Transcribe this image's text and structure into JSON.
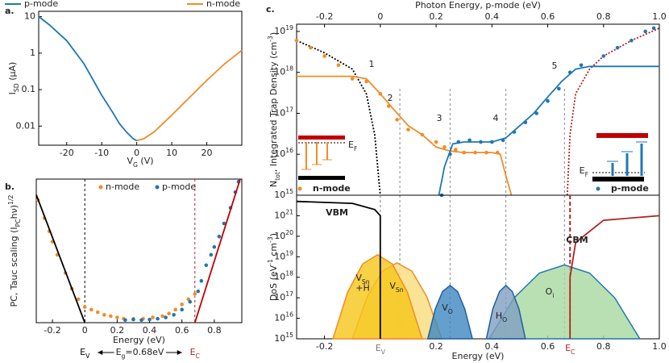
{
  "chart_data": [
    {
      "type": "line",
      "panel_label": "a.",
      "yscale": "log",
      "legend": "top",
      "xaxis": "bottom",
      "xlabel": [
        {
          "text": "V"
        },
        {
          "text": "G",
          "pos": "sub"
        },
        {
          "text": " (V)"
        }
      ],
      "ylabel": [
        {
          "text": "I"
        },
        {
          "text": "SD",
          "pos": "sub"
        },
        {
          "text": " (μA)"
        }
      ],
      "xlim": [
        -28,
        30
      ],
      "xticks": [
        -20,
        -10,
        0,
        10,
        20
      ],
      "ylim": [
        0.003,
        14
      ],
      "yticks": [
        0.01,
        0.1,
        1,
        10
      ],
      "series": [
        {
          "name": "p-mode",
          "color": "#1f77b4",
          "style": "line",
          "x": [
            -28,
            -25,
            -20,
            -15,
            -10,
            -7,
            -5,
            -3,
            -1,
            0
          ],
          "values": [
            10,
            6,
            2.2,
            0.5,
            0.07,
            0.025,
            0.012,
            0.007,
            0.0045,
            0.004
          ]
        },
        {
          "name": "n-mode",
          "color": "#f28c28",
          "style": "line",
          "x": [
            0,
            2,
            5,
            10,
            15,
            20,
            25,
            30
          ],
          "values": [
            0.004,
            0.0045,
            0.007,
            0.02,
            0.06,
            0.18,
            0.5,
            1.2
          ]
        }
      ]
    },
    {
      "type": "scatter",
      "panel_label": "b.",
      "legend": "top",
      "xaxis": "bottom",
      "xlabel": "Energy (eV)",
      "ylabel": [
        {
          "text": "PC, Tauc scaling  (I"
        },
        {
          "text": "PC",
          "pos": "sub"
        },
        {
          "text": "hν)"
        },
        {
          "text": "1/2",
          "pos": "sup"
        }
      ],
      "xlim": [
        -0.3,
        0.97
      ],
      "xticks": [
        -0.2,
        0,
        0.2,
        0.4,
        0.6,
        0.8
      ],
      "ylim": [
        0,
        5.5
      ],
      "vlines": [
        {
          "value": 0,
          "color": "#000000",
          "label": [
            {
              "text": "E"
            },
            {
              "text": "V",
              "pos": "sub"
            }
          ]
        },
        {
          "value": 0.68,
          "color": "#b22222",
          "label": [
            {
              "text": "E"
            },
            {
              "text": "C",
              "pos": "sub"
            }
          ]
        }
      ],
      "gap_label": [
        {
          "text": "E"
        },
        {
          "text": "g",
          "pos": "sub"
        },
        {
          "text": "=0.68eV"
        }
      ],
      "series": [
        {
          "name": "n-mode",
          "color": "#f28c28",
          "style": "dots",
          "x": [
            -0.29,
            -0.25,
            -0.22,
            -0.2,
            -0.17,
            -0.12,
            -0.08,
            -0.04,
            0,
            0.04,
            0.08,
            0.12,
            0.16,
            0.2,
            0.24,
            0.3,
            0.36,
            0.42,
            0.48,
            0.52,
            0.56,
            0.6,
            0.64,
            0.68
          ],
          "values": [
            4.7,
            4.0,
            3.5,
            3.1,
            2.6,
            1.9,
            1.3,
            0.9,
            0.6,
            0.5,
            0.4,
            0.3,
            0.25,
            0.2,
            0.15,
            0.15,
            0.15,
            0.2,
            0.25,
            0.35,
            0.5,
            0.7,
            0.9,
            1.1
          ]
        },
        {
          "name": "p-mode",
          "color": "#1f77b4",
          "style": "dots",
          "x": [
            0.25,
            0.3,
            0.35,
            0.4,
            0.45,
            0.5,
            0.55,
            0.6,
            0.65,
            0.7,
            0.72,
            0.75,
            0.78,
            0.8,
            0.83,
            0.86,
            0.9,
            0.93,
            0.95
          ],
          "values": [
            0.1,
            0.12,
            0.1,
            0.12,
            0.15,
            0.2,
            0.3,
            0.5,
            0.8,
            1.2,
            1.6,
            2.2,
            2.6,
            2.9,
            3.3,
            3.8,
            4.4,
            5.0,
            5.4
          ]
        },
        {
          "color": "#000000",
          "style": "line",
          "x": [
            -0.3,
            0
          ],
          "values": [
            4.9,
            0
          ]
        },
        {
          "color": "#c00000",
          "style": "line",
          "x": [
            0.68,
            0.96
          ],
          "values": [
            0,
            5.5
          ]
        }
      ]
    },
    {
      "type": "line",
      "panel_label": "c.",
      "yscale": "log",
      "xaxis": "top",
      "xlabel": "Photon Energy, p-mode  (eV)",
      "ylabel": [
        {
          "text": "N"
        },
        {
          "text": "tot",
          "pos": "sub"
        },
        {
          "text": ", Integrated Trap Density (cm"
        },
        {
          "text": "-3",
          "pos": "sup"
        },
        {
          "text": ")"
        }
      ],
      "xlim": [
        -0.3,
        1.0
      ],
      "xticks": [
        -0.2,
        0,
        0.2,
        0.4,
        0.6,
        0.8,
        {
          "value": 1,
          "label": "1.0"
        }
      ],
      "ylim": [
        1000000000000000.0,
        1.5e+19
      ],
      "yticks": [
        {
          "value": 1000000000000000.0,
          "label": [
            {
              "text": "10"
            },
            {
              "text": "15",
              "pos": "sup"
            }
          ]
        },
        {
          "value": 1e+16,
          "label": [
            {
              "text": "10"
            },
            {
              "text": "16",
              "pos": "sup"
            }
          ]
        },
        {
          "value": 1e+17,
          "label": [
            {
              "text": "10"
            },
            {
              "text": "17",
              "pos": "sup"
            }
          ]
        },
        {
          "value": 1e+18,
          "label": [
            {
              "text": "10"
            },
            {
              "text": "18",
              "pos": "sup"
            }
          ]
        },
        {
          "value": 1e+19,
          "label": [
            {
              "text": "10"
            },
            {
              "text": "19",
              "pos": "sup"
            }
          ]
        }
      ],
      "vlines": [
        0.07,
        0.25,
        0.45,
        0.66
      ],
      "annotations": [
        {
          "text": "1",
          "color": "#7a9a2a"
        },
        {
          "text": "2",
          "color": "#7a9a2a"
        },
        {
          "text": "3",
          "color": "#000000"
        },
        {
          "text": "4",
          "color": "#000000"
        },
        {
          "text": "5",
          "color": "#4f7a1f"
        }
      ],
      "insets": [
        {
          "ef": [
            {
              "text": "E"
            },
            {
              "text": "F",
              "pos": "sub"
            }
          ]
        },
        {
          "ef": [
            {
              "text": "E"
            },
            {
              "text": "F",
              "pos": "sub"
            }
          ]
        }
      ],
      "series": [
        {
          "color": "#000000",
          "style": "dotted",
          "x": [
            -0.3,
            -0.2,
            -0.1,
            -0.05,
            -0.02,
            0
          ],
          "values": [
            6e+18,
            3e+18,
            1.2e+18,
            3e+17,
            3e+16,
            1000000000000000.0
          ]
        },
        {
          "color": "#b22222",
          "style": "dotted",
          "x": [
            0.67,
            0.68,
            0.7,
            0.75,
            0.8,
            0.9,
            1.0
          ],
          "values": [
            1000000000000000.0,
            3e+16,
            3e+17,
            1.2e+18,
            2.5e+18,
            6e+18,
            1.2e+19
          ]
        },
        {
          "color": "#f28c28",
          "style": "line",
          "x": [
            -0.3,
            -0.1,
            -0.05,
            0,
            0.05,
            0.1,
            0.15,
            0.2,
            0.25,
            0.3,
            0.4,
            0.43,
            0.45,
            0.47
          ],
          "values": [
            8e+17,
            8e+17,
            7e+17,
            3e+17,
            1.2e+17,
            5e+16,
            3e+16,
            1.5e+16,
            1.2e+16,
            1.1e+16,
            1.1e+16,
            1e+16,
            3000000000000000.0,
            1000000000000000.0
          ]
        },
        {
          "name": "n-mode",
          "color": "#f28c28",
          "style": "dots",
          "x": [
            -0.3,
            -0.25,
            -0.2,
            -0.15,
            -0.1,
            -0.05,
            0,
            0.03,
            0.06,
            0.1,
            0.15,
            0.2,
            0.23,
            0.27,
            0.3,
            0.34,
            0.38,
            0.42
          ],
          "values": [
            6e+18,
            4e+18,
            2.5e+18,
            1.5e+18,
            7e+17,
            6e+17,
            3e+17,
            1.5e+17,
            7e+16,
            4e+16,
            3e+16,
            2e+16,
            1.5e+16,
            1.3e+16,
            1.1e+16,
            1.1e+16,
            1.1e+16,
            1.1e+16
          ]
        },
        {
          "color": "#1f77b4",
          "style": "line",
          "x": [
            0.21,
            0.23,
            0.26,
            0.3,
            0.4,
            0.45,
            0.5,
            0.55,
            0.6,
            0.65,
            0.7,
            0.75,
            1.0
          ],
          "values": [
            1000000000000000.0,
            5000000000000000.0,
            1.8e+16,
            2e+16,
            2e+16,
            2.5e+16,
            5e+16,
            1e+17,
            2.5e+17,
            6e+17,
            1.2e+18,
            1.4e+18,
            1.4e+18
          ]
        },
        {
          "name": "p-mode",
          "color": "#1f77b4",
          "style": "dots",
          "x": [
            0.22,
            0.25,
            0.28,
            0.32,
            0.36,
            0.4,
            0.44,
            0.48,
            0.52,
            0.56,
            0.6,
            0.64,
            0.68,
            0.72,
            0.8,
            0.85,
            0.9,
            0.95,
            0.98
          ],
          "values": [
            1000000000000000.0,
            1e+16,
            2e+16,
            2.2e+16,
            2e+16,
            2e+16,
            2.2e+16,
            3.5e+16,
            6e+16,
            1e+17,
            2e+17,
            4e+17,
            1e+18,
            1.5e+18,
            2.5e+18,
            4e+18,
            6e+18,
            1e+19,
            1.2e+19
          ]
        }
      ]
    },
    {
      "type": "area",
      "yscale": "log",
      "xaxis": "bottom",
      "xlabel": "Energy (eV)",
      "ylabel": [
        {
          "text": "DoS (eV"
        },
        {
          "text": "-1",
          "pos": "sup"
        },
        {
          "text": " cm"
        },
        {
          "text": "-3",
          "pos": "sup"
        },
        {
          "text": ")"
        }
      ],
      "xlim": [
        -0.3,
        1.0
      ],
      "xticks": [
        -0.2,
        0.2,
        0.4,
        0.6,
        0.8,
        {
          "value": 1,
          "label": "1.0"
        }
      ],
      "ylim": [
        1000000000000000.0,
        1e+22
      ],
      "yticks": [
        {
          "value": 1000000000000000.0,
          "label": [
            {
              "text": "10"
            },
            {
              "text": "15",
              "pos": "sup"
            }
          ]
        },
        {
          "value": 1e+16,
          "label": [
            {
              "text": "10"
            },
            {
              "text": "16",
              "pos": "sup"
            }
          ]
        },
        {
          "value": 1e+17,
          "label": [
            {
              "text": "10"
            },
            {
              "text": "17",
              "pos": "sup"
            }
          ]
        },
        {
          "value": 1e+18,
          "label": [
            {
              "text": "10"
            },
            {
              "text": "18",
              "pos": "sup"
            }
          ]
        },
        {
          "value": 1e+19,
          "label": [
            {
              "text": "10"
            },
            {
              "text": "19",
              "pos": "sup"
            }
          ]
        },
        {
          "value": 1e+20,
          "label": [
            {
              "text": "10"
            },
            {
              "text": "20",
              "pos": "sup"
            }
          ]
        },
        {
          "value": 1e+21,
          "label": [
            {
              "text": "10"
            },
            {
              "text": "21",
              "pos": "sup"
            }
          ]
        }
      ],
      "vlines": [
        {
          "value": 0,
          "color": "#777777",
          "label": [
            {
              "text": "E"
            },
            {
              "text": "V",
              "pos": "sub"
            }
          ]
        },
        {
          "value": 0.68,
          "color": "#b22222",
          "label": [
            {
              "text": "E"
            },
            {
              "text": "C",
              "pos": "sub"
            }
          ]
        }
      ],
      "series": [
        {
          "label": [
            {
              "text": "O"
            },
            {
              "text": "i",
              "pos": "sub"
            }
          ],
          "color": "#1f77b4",
          "fill": "#a8d8a0",
          "style": "area",
          "x": [
            0.39,
            0.48,
            0.57,
            0.66,
            0.75,
            0.84,
            0.93
          ],
          "values": [
            1000000000000000.0,
            1e+17,
            1.6e+18,
            4e+18,
            1.6e+18,
            1e+17,
            1000000000000000.0
          ]
        },
        {
          "label": [
            {
              "text": "V"
            },
            {
              "text": "Sn",
              "pos": "sub"
            }
          ],
          "color": "#f28c28",
          "fill": "#f7dc7a",
          "style": "area",
          "x": [
            -0.1,
            -0.047,
            0.007,
            0.06,
            0.113,
            0.167,
            0.22
          ],
          "values": [
            1000000000000000.0,
            1.1e+17,
            2e+18,
            5e+18,
            2e+18,
            1.1e+17,
            1000000000000000.0
          ]
        },
        {
          "label": [
            {
              "text": "V"
            },
            {
              "text": "Sn",
              "pos": "sub"
            },
            {
              "text": "+H",
              "pos": "br"
            }
          ],
          "color": "#f28c28",
          "fill": "#f5c518",
          "style": "area",
          "x": [
            -0.17,
            -0.117,
            -0.063,
            -0.01,
            0.043,
            0.097,
            0.15
          ],
          "values": [
            1000000000000000.0,
            1.9e+17,
            4.5e+18,
            1.26e+19,
            4.5e+18,
            1.9e+17,
            1000000000000000.0
          ]
        },
        {
          "label": [
            {
              "text": "V"
            },
            {
              "text": "O",
              "pos": "sub"
            }
          ],
          "color": "#1f5f9f",
          "fill": "#3f87c2",
          "style": "area",
          "x": [
            0.17,
            0.197,
            0.223,
            0.25,
            0.277,
            0.303,
            0.33
          ],
          "values": [
            1000000000000000.0,
            2.8e+16,
            2e+17,
            4e+17,
            2e+17,
            2.8e+16,
            1000000000000000.0
          ]
        },
        {
          "label": [
            {
              "text": "H"
            },
            {
              "text": "O",
              "pos": "sub"
            }
          ],
          "color": "#1f5f9f",
          "fill": "#7f9fc0",
          "style": "area",
          "x": [
            0.38,
            0.403,
            0.427,
            0.45,
            0.473,
            0.497,
            0.52
          ],
          "values": [
            1000000000000000.0,
            2.8e+16,
            2e+17,
            4e+17,
            2e+17,
            2.8e+16,
            1000000000000000.0
          ]
        },
        {
          "label": "VBM",
          "color": "#000000",
          "style": "line",
          "x": [
            -0.3,
            -0.1,
            -0.02,
            0,
            0
          ],
          "values": [
            5e+21,
            4e+21,
            2e+21,
            1e+21,
            1000000000000000.0
          ]
        },
        {
          "label": "CBM",
          "color": "#b22222",
          "style": "line",
          "x": [
            0.68,
            0.68,
            0.7,
            0.8,
            1.0
          ],
          "values": [
            1000000000000000.0,
            1e+18,
            5e+19,
            6e+20,
            1e+21
          ]
        }
      ]
    }
  ]
}
